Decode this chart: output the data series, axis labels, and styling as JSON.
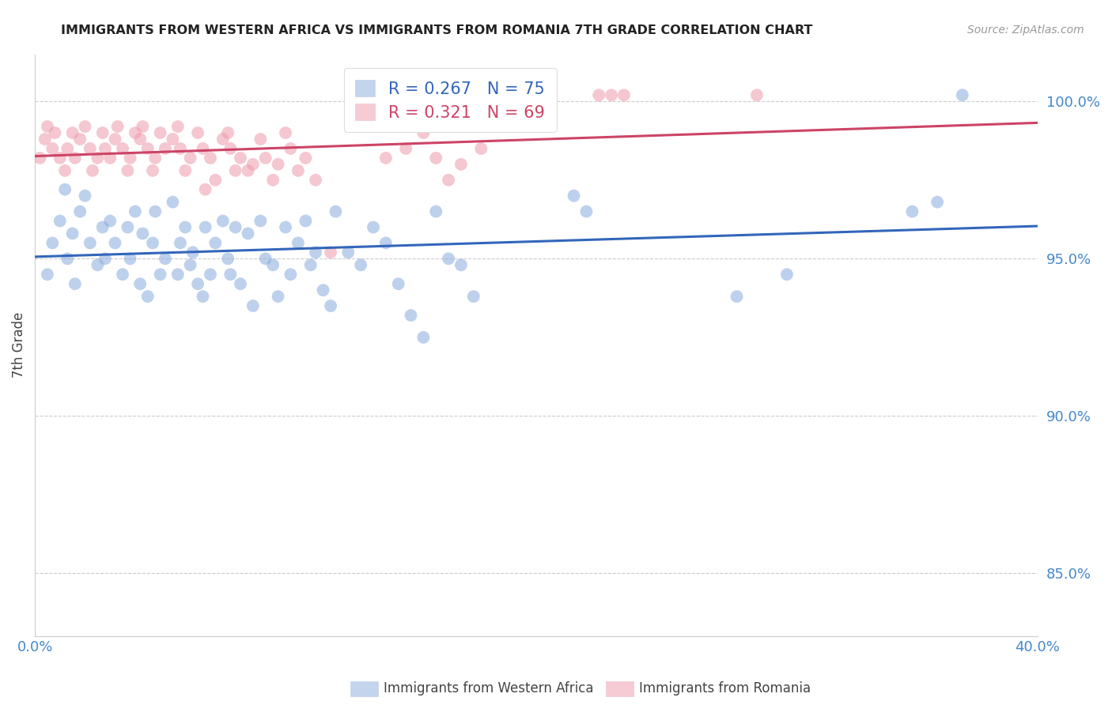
{
  "title": "IMMIGRANTS FROM WESTERN AFRICA VS IMMIGRANTS FROM ROMANIA 7TH GRADE CORRELATION CHART",
  "source": "Source: ZipAtlas.com",
  "ylabel": "7th Grade",
  "xlim": [
    0.0,
    0.4
  ],
  "ylim": [
    83.0,
    101.5
  ],
  "yticks": [
    85.0,
    90.0,
    95.0,
    100.0
  ],
  "ytick_labels": [
    "85.0%",
    "90.0%",
    "95.0%",
    "100.0%"
  ],
  "xtick_vals": [
    0.0,
    0.4
  ],
  "xtick_labels": [
    "0.0%",
    "40.0%"
  ],
  "blue_color": "#88aadd",
  "pink_color": "#ee99aa",
  "blue_line_color": "#3366bb",
  "pink_line_color": "#cc4466",
  "tick_color": "#4488cc",
  "legend_blue_R": "0.267",
  "legend_blue_N": "75",
  "legend_pink_R": "0.321",
  "legend_pink_N": "69",
  "legend_label_blue": "Immigrants from Western Africa",
  "legend_label_pink": "Immigrants from Romania",
  "blue_x": [
    0.005,
    0.007,
    0.01,
    0.012,
    0.013,
    0.015,
    0.016,
    0.018,
    0.02,
    0.022,
    0.025,
    0.027,
    0.028,
    0.03,
    0.032,
    0.035,
    0.037,
    0.038,
    0.04,
    0.042,
    0.043,
    0.045,
    0.047,
    0.048,
    0.05,
    0.052,
    0.055,
    0.057,
    0.058,
    0.06,
    0.062,
    0.063,
    0.065,
    0.067,
    0.068,
    0.07,
    0.072,
    0.075,
    0.077,
    0.078,
    0.08,
    0.082,
    0.085,
    0.087,
    0.09,
    0.092,
    0.095,
    0.097,
    0.1,
    0.102,
    0.105,
    0.108,
    0.11,
    0.112,
    0.115,
    0.118,
    0.12,
    0.125,
    0.13,
    0.135,
    0.14,
    0.145,
    0.15,
    0.155,
    0.16,
    0.165,
    0.17,
    0.175,
    0.215,
    0.22,
    0.28,
    0.3,
    0.35,
    0.36,
    0.37
  ],
  "blue_y": [
    94.5,
    95.5,
    96.2,
    97.2,
    95.0,
    95.8,
    94.2,
    96.5,
    97.0,
    95.5,
    94.8,
    96.0,
    95.0,
    96.2,
    95.5,
    94.5,
    96.0,
    95.0,
    96.5,
    94.2,
    95.8,
    93.8,
    95.5,
    96.5,
    94.5,
    95.0,
    96.8,
    94.5,
    95.5,
    96.0,
    94.8,
    95.2,
    94.2,
    93.8,
    96.0,
    94.5,
    95.5,
    96.2,
    95.0,
    94.5,
    96.0,
    94.2,
    95.8,
    93.5,
    96.2,
    95.0,
    94.8,
    93.8,
    96.0,
    94.5,
    95.5,
    96.2,
    94.8,
    95.2,
    94.0,
    93.5,
    96.5,
    95.2,
    94.8,
    96.0,
    95.5,
    94.2,
    93.2,
    92.5,
    96.5,
    95.0,
    94.8,
    93.8,
    97.0,
    96.5,
    93.8,
    94.5,
    96.5,
    96.8,
    100.2
  ],
  "pink_x": [
    0.002,
    0.004,
    0.005,
    0.007,
    0.008,
    0.01,
    0.012,
    0.013,
    0.015,
    0.016,
    0.018,
    0.02,
    0.022,
    0.023,
    0.025,
    0.027,
    0.028,
    0.03,
    0.032,
    0.033,
    0.035,
    0.037,
    0.038,
    0.04,
    0.042,
    0.043,
    0.045,
    0.047,
    0.048,
    0.05,
    0.052,
    0.055,
    0.057,
    0.058,
    0.06,
    0.062,
    0.065,
    0.067,
    0.068,
    0.07,
    0.072,
    0.075,
    0.077,
    0.078,
    0.08,
    0.082,
    0.085,
    0.087,
    0.09,
    0.092,
    0.095,
    0.097,
    0.1,
    0.102,
    0.105,
    0.108,
    0.112,
    0.118,
    0.14,
    0.148,
    0.155,
    0.16,
    0.165,
    0.17,
    0.178,
    0.225,
    0.23,
    0.235,
    0.288
  ],
  "pink_y": [
    98.2,
    98.8,
    99.2,
    98.5,
    99.0,
    98.2,
    97.8,
    98.5,
    99.0,
    98.2,
    98.8,
    99.2,
    98.5,
    97.8,
    98.2,
    99.0,
    98.5,
    98.2,
    98.8,
    99.2,
    98.5,
    97.8,
    98.2,
    99.0,
    98.8,
    99.2,
    98.5,
    97.8,
    98.2,
    99.0,
    98.5,
    98.8,
    99.2,
    98.5,
    97.8,
    98.2,
    99.0,
    98.5,
    97.2,
    98.2,
    97.5,
    98.8,
    99.0,
    98.5,
    97.8,
    98.2,
    97.8,
    98.0,
    98.8,
    98.2,
    97.5,
    98.0,
    99.0,
    98.5,
    97.8,
    98.2,
    97.5,
    95.2,
    98.2,
    98.5,
    99.0,
    98.2,
    97.5,
    98.0,
    98.5,
    100.2,
    100.2,
    100.2,
    100.2
  ]
}
